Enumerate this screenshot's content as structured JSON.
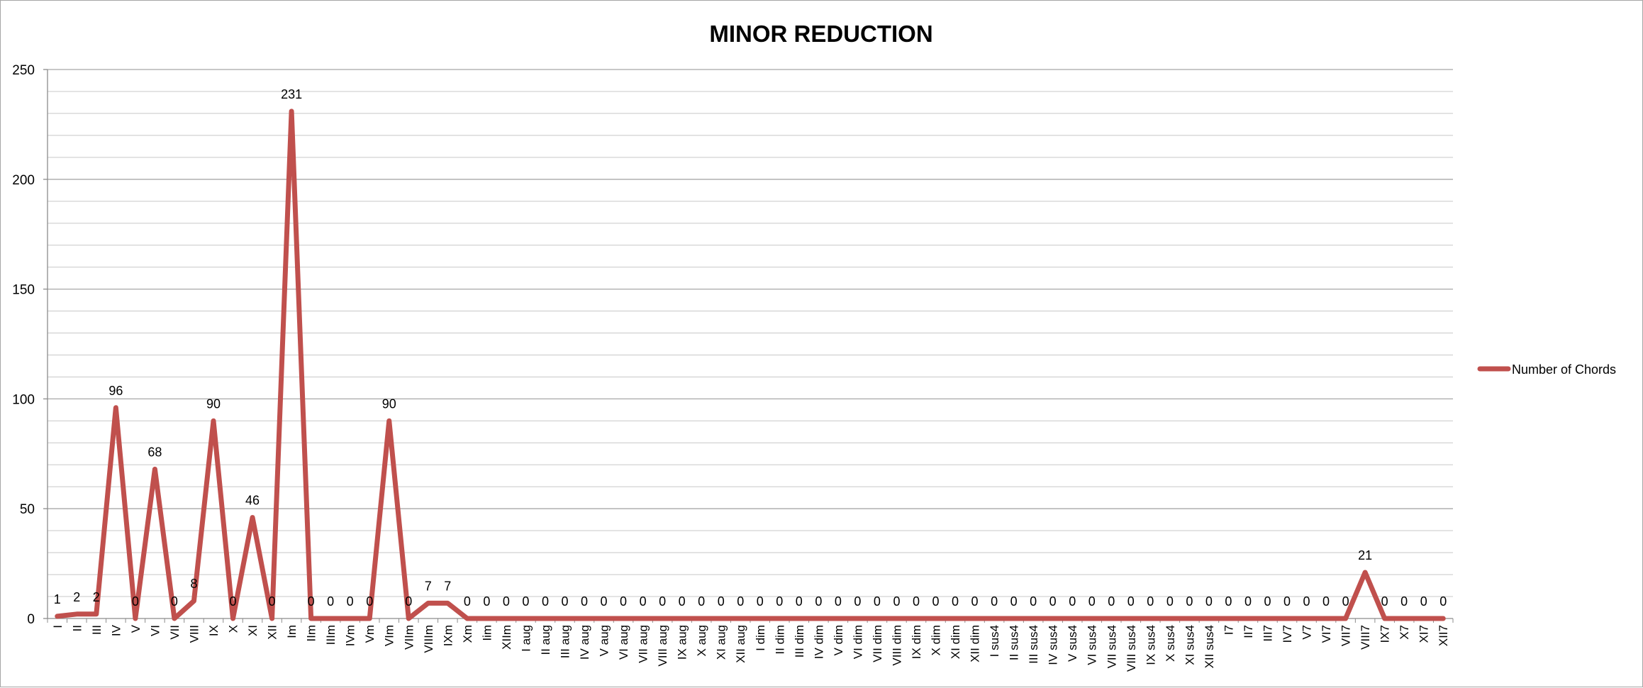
{
  "chart_data": {
    "type": "line",
    "title": "MINOR REDUCTION",
    "xlabel": "",
    "ylabel": "",
    "ylim": [
      0,
      250
    ],
    "y_major_ticks": [
      0,
      50,
      100,
      150,
      200,
      250
    ],
    "y_minor_step": 10,
    "grid": true,
    "legend_position": "right",
    "line_color": "#c0504d",
    "categories": [
      "I",
      "II",
      "III",
      "IV",
      "V",
      "VI",
      "VII",
      "VIII",
      "IX",
      "X",
      "XI",
      "XII",
      "Im",
      "IIm",
      "IIIm",
      "IVm",
      "Vm",
      "VIm",
      "VIIm",
      "VIIIm",
      "IXm",
      "Xm",
      "Iim",
      "XIIm",
      "I aug",
      "II aug",
      "III aug",
      "IV aug",
      "V aug",
      "VI aug",
      "VII aug",
      "VIII aug",
      "IX aug",
      "X aug",
      "XI aug",
      "XII aug",
      "I dim",
      "II dim",
      "III dim",
      "IV dim",
      "V dim",
      "VI dim",
      "VII dim",
      "VIII dim",
      "IX dim",
      "X dim",
      "XI dim",
      "XII dim",
      "I sus4",
      "II sus4",
      "III sus4",
      "IV sus4",
      "V sus4",
      "VI sus4",
      "VII sus4",
      "VIII sus4",
      "IX sus4",
      "X sus4",
      "XI sus4",
      "XII sus4",
      "I7",
      "II7",
      "III7",
      "IV7",
      "V7",
      "VI7",
      "VII7",
      "VIII7",
      "IX7",
      "X7",
      "XI7",
      "XII7"
    ],
    "series": [
      {
        "name": "Number of Chords",
        "values": [
          1,
          2,
          2,
          96,
          0,
          68,
          0,
          8,
          90,
          0,
          46,
          0,
          231,
          0,
          0,
          0,
          0,
          90,
          0,
          7,
          7,
          0,
          0,
          0,
          0,
          0,
          0,
          0,
          0,
          0,
          0,
          0,
          0,
          0,
          0,
          0,
          0,
          0,
          0,
          0,
          0,
          0,
          0,
          0,
          0,
          0,
          0,
          0,
          0,
          0,
          0,
          0,
          0,
          0,
          0,
          0,
          0,
          0,
          0,
          0,
          0,
          0,
          0,
          0,
          0,
          0,
          0,
          21,
          0,
          0,
          0,
          0
        ]
      }
    ]
  }
}
